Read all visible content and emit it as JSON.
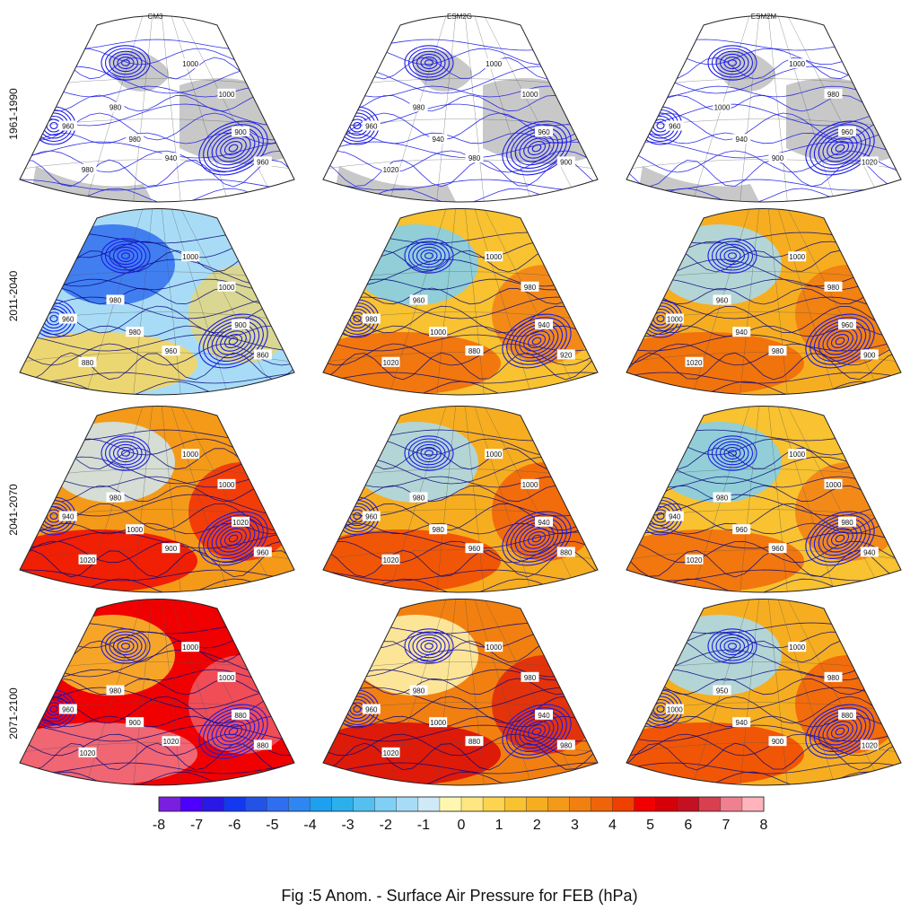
{
  "figure": {
    "caption": "Fig :5  Anom.  - Surface Air Pressure for FEB (hPa)"
  },
  "columns": [
    "CM3",
    "ESM2G",
    "ESM2M"
  ],
  "rows": [
    "1961-1990",
    "2011-2040",
    "2041-2070",
    "2071-2100"
  ],
  "colorbar": {
    "ticks": [
      "-8",
      "-7",
      "-6",
      "-5",
      "-4",
      "-3",
      "-2",
      "-1",
      "0",
      "1",
      "2",
      "3",
      "4",
      "5",
      "6",
      "7",
      "8"
    ],
    "colors": [
      "#7a1fe0",
      "#4d00ff",
      "#2a18e6",
      "#1438f0",
      "#2452e6",
      "#2f6ef0",
      "#2f86f0",
      "#1ea0f0",
      "#2cb0ec",
      "#55c0f0",
      "#7fd0f4",
      "#a8dcf6",
      "#cfe9f6",
      "#fff7b0",
      "#ffe680",
      "#fcd450",
      "#f8c230",
      "#f6ae20",
      "#f49a18",
      "#f28010",
      "#f06408",
      "#f04000",
      "#f00000",
      "#d80008",
      "#c41020",
      "#d84050",
      "#f08090",
      "#ffb4bc"
    ]
  },
  "panels": [
    {
      "contour_labels": [
        "1000",
        "1000",
        "980",
        "960",
        "980",
        "900",
        "940",
        "960",
        "980"
      ]
    },
    {
      "contour_labels": [
        "1000",
        "1000",
        "980",
        "960",
        "940",
        "960",
        "980",
        "900",
        "1020"
      ]
    },
    {
      "contour_labels": [
        "1000",
        "980",
        "1000",
        "960",
        "940",
        "960",
        "900",
        "1020"
      ]
    },
    {
      "contour_labels": [
        "1000",
        "1000",
        "980",
        "960",
        "980",
        "900",
        "960",
        "860",
        "880"
      ]
    },
    {
      "contour_labels": [
        "1000",
        "980",
        "960",
        "980",
        "1000",
        "940",
        "880",
        "920",
        "1020"
      ]
    },
    {
      "contour_labels": [
        "1000",
        "980",
        "960",
        "1000",
        "940",
        "960",
        "980",
        "900",
        "1020"
      ]
    },
    {
      "contour_labels": [
        "1000",
        "1000",
        "980",
        "940",
        "1000",
        "1020",
        "900",
        "960",
        "1020"
      ]
    },
    {
      "contour_labels": [
        "1000",
        "1000",
        "980",
        "960",
        "980",
        "940",
        "960",
        "880",
        "1020"
      ]
    },
    {
      "contour_labels": [
        "1000",
        "1000",
        "980",
        "940",
        "960",
        "980",
        "960",
        "940",
        "1020"
      ]
    },
    {
      "contour_labels": [
        "1000",
        "1000",
        "980",
        "960",
        "900",
        "880",
        "1020",
        "880",
        "1020"
      ]
    },
    {
      "contour_labels": [
        "1000",
        "980",
        "980",
        "960",
        "1000",
        "940",
        "880",
        "980",
        "1020"
      ]
    },
    {
      "contour_labels": [
        "1000",
        "980",
        "950",
        "1000",
        "940",
        "880",
        "900",
        "1020"
      ]
    }
  ],
  "panel_fill_anomaly": [
    null,
    null,
    null,
    -1.2,
    1.5,
    1.8,
    2.8,
    2.2,
    1.6,
    5.0,
    3.2,
    2.0
  ],
  "colors": {
    "contour_present": "#1a1ae6",
    "contour_future": "#0a0a80",
    "land_mask": "#c8c8c8"
  }
}
